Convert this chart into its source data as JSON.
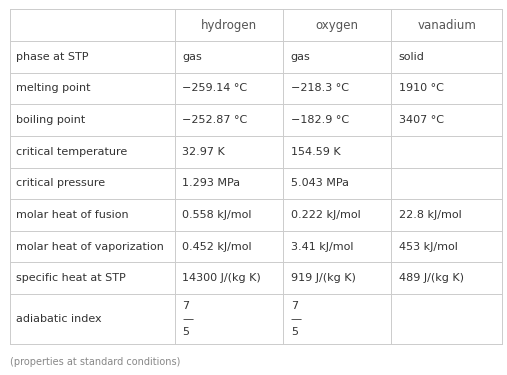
{
  "col_headers": [
    "",
    "hydrogen",
    "oxygen",
    "vanadium"
  ],
  "rows": [
    [
      "phase at STP",
      "gas",
      "gas",
      "solid"
    ],
    [
      "melting point",
      "−259.14 °C",
      "−218.3 °C",
      "1910 °C"
    ],
    [
      "boiling point",
      "−252.87 °C",
      "−182.9 °C",
      "3407 °C"
    ],
    [
      "critical temperature",
      "32.97 K",
      "154.59 K",
      ""
    ],
    [
      "critical pressure",
      "1.293 MPa",
      "5.043 MPa",
      ""
    ],
    [
      "molar heat of fusion",
      "0.558 kJ/mol",
      "0.222 kJ/mol",
      "22.8 kJ/mol"
    ],
    [
      "molar heat of vaporization",
      "0.452 kJ/mol",
      "3.41 kJ/mol",
      "453 kJ/mol"
    ],
    [
      "specific heat at STP",
      "14300 J/(kg K)",
      "919 J/(kg K)",
      "489 J/(kg K)"
    ],
    [
      "adiabatic index",
      "7\n—\n5",
      "7\n—\n5",
      ""
    ]
  ],
  "footer": "(properties at standard conditions)",
  "bg_color": "#ffffff",
  "header_text_color": "#555555",
  "row_text_color": "#333333",
  "grid_color": "#cccccc",
  "header_font_size": 8.5,
  "cell_font_size": 8.0,
  "footer_font_size": 7.0,
  "fig_width": 5.07,
  "fig_height": 3.75,
  "dpi": 100
}
